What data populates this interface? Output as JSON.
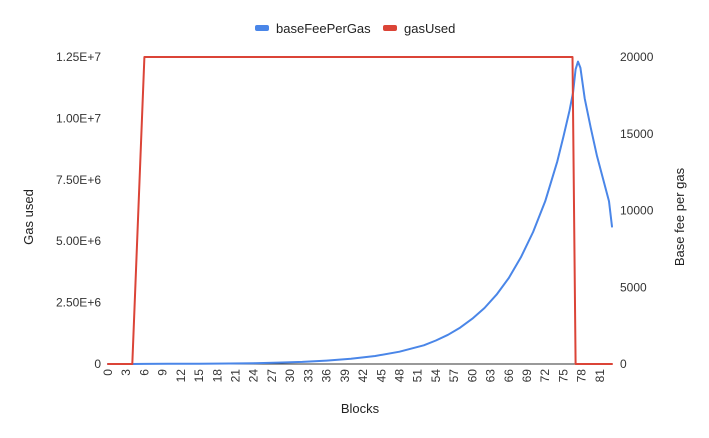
{
  "chart_data": {
    "type": "line",
    "title": "",
    "xlabel": "Blocks",
    "ylabel_left": "Gas used",
    "ylabel_right": "Base fee per gas",
    "legend_position": "top-center",
    "grid": false,
    "x_tick_labels": [
      "0",
      "3",
      "6",
      "9",
      "12",
      "15",
      "18",
      "21",
      "24",
      "27",
      "30",
      "33",
      "36",
      "39",
      "42",
      "45",
      "48",
      "51",
      "54",
      "57",
      "60",
      "63",
      "66",
      "69",
      "72",
      "75",
      "78",
      "81"
    ],
    "y_left": {
      "min": 0,
      "max": 12500000,
      "tick_values": [
        0,
        2500000,
        5000000,
        7500000,
        10000000,
        12500000
      ],
      "tick_labels": [
        "0",
        "2.50E+6",
        "5.00E+6",
        "7.50E+6",
        "1.00E+7",
        "1.25E+7"
      ]
    },
    "y_right": {
      "min": 0,
      "max": 20000,
      "tick_values": [
        0,
        5000,
        10000,
        15000,
        20000
      ],
      "tick_labels": [
        "0",
        "5000",
        "10000",
        "15000",
        "20000"
      ]
    },
    "x_range": [
      0,
      83
    ],
    "series": [
      {
        "name": "baseFeePerGas",
        "axis": "right",
        "color": "#4a86e8",
        "points": [
          [
            0,
            0
          ],
          [
            4,
            0
          ],
          [
            6,
            7
          ],
          [
            10,
            12
          ],
          [
            15,
            20
          ],
          [
            20,
            35
          ],
          [
            24,
            55
          ],
          [
            28,
            90
          ],
          [
            32,
            140
          ],
          [
            36,
            220
          ],
          [
            40,
            340
          ],
          [
            44,
            520
          ],
          [
            48,
            800
          ],
          [
            52,
            1220
          ],
          [
            54,
            1530
          ],
          [
            56,
            1900
          ],
          [
            58,
            2370
          ],
          [
            60,
            2950
          ],
          [
            62,
            3650
          ],
          [
            64,
            4520
          ],
          [
            66,
            5600
          ],
          [
            68,
            6950
          ],
          [
            70,
            8600
          ],
          [
            72,
            10600
          ],
          [
            74,
            13200
          ],
          [
            75,
            14800
          ],
          [
            76,
            16500
          ],
          [
            76.6,
            17700
          ],
          [
            77,
            19200
          ],
          [
            77.4,
            19700
          ],
          [
            77.8,
            19300
          ],
          [
            78.5,
            17300
          ],
          [
            79.5,
            15400
          ],
          [
            80.5,
            13600
          ],
          [
            81.5,
            12100
          ],
          [
            82.5,
            10600
          ],
          [
            83,
            8950
          ]
        ]
      },
      {
        "name": "gasUsed",
        "axis": "left",
        "color": "#db4437",
        "points": [
          [
            0,
            0
          ],
          [
            4,
            0
          ],
          [
            6,
            12500000
          ],
          [
            75.5,
            12500000
          ],
          [
            76.5,
            12500000
          ],
          [
            77,
            0
          ],
          [
            83,
            0
          ]
        ]
      }
    ]
  },
  "legend": [
    {
      "label": "baseFeePerGas",
      "color": "#4a86e8"
    },
    {
      "label": "gasUsed",
      "color": "#db4437"
    }
  ]
}
